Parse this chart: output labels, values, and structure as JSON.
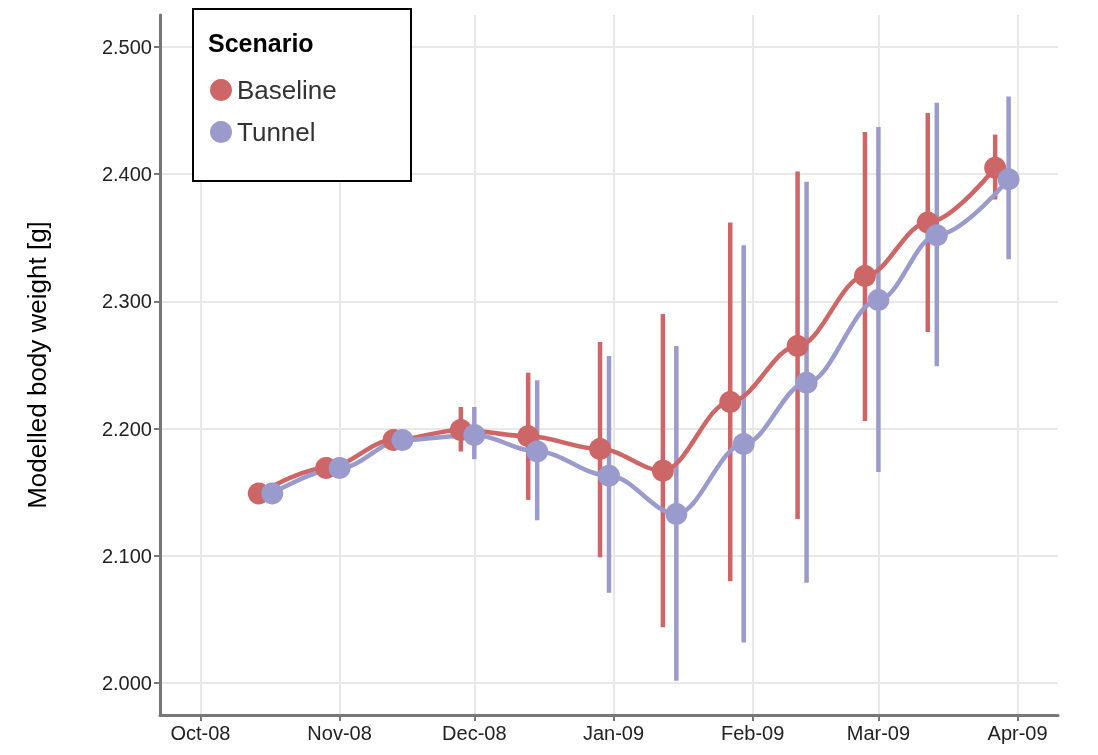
{
  "chart_data": {
    "type": "line",
    "ylabel": "Modelled body weight [g]",
    "legend_title": "Scenario",
    "legend": "top left",
    "grid": true,
    "marker": "circle",
    "line_style": "solid",
    "xlim": [
      "2008-09-22",
      "2009-04-10"
    ],
    "xticks": [
      {
        "value": "2008-10-01",
        "label": "Oct-08"
      },
      {
        "value": "2008-11-01",
        "label": "Nov-08"
      },
      {
        "value": "2008-12-01",
        "label": "Dec-08"
      },
      {
        "value": "2009-01-01",
        "label": "Jan-09"
      },
      {
        "value": "2009-02-01",
        "label": "Feb-09"
      },
      {
        "value": "2009-03-01",
        "label": "Mar-09"
      },
      {
        "value": "2009-04-01",
        "label": "Apr-09"
      }
    ],
    "ylim": [
      1.975,
      2.525
    ],
    "yticks": [
      {
        "value": 2.0,
        "label": "2.000"
      },
      {
        "value": 2.1,
        "label": "2.100"
      },
      {
        "value": 2.2,
        "label": "2.200"
      },
      {
        "value": 2.3,
        "label": "2.300"
      },
      {
        "value": 2.4,
        "label": "2.400"
      },
      {
        "value": 2.5,
        "label": "2.500"
      }
    ],
    "series": [
      {
        "name": "Baseline",
        "color": "#cd6666",
        "x": [
          "2008-10-14",
          "2008-10-29",
          "2008-11-13",
          "2008-11-28",
          "2008-12-13",
          "2008-12-29",
          "2009-01-12",
          "2009-01-27",
          "2009-02-11",
          "2009-02-26",
          "2009-03-12",
          "2009-03-27"
        ],
        "values": [
          2.149,
          2.169,
          2.191,
          2.199,
          2.194,
          2.184,
          2.167,
          2.221,
          2.265,
          2.32,
          2.362,
          2.405
        ],
        "errors": [
          null,
          null,
          null,
          [
            2.182,
            2.217
          ],
          [
            2.144,
            2.244
          ],
          [
            2.099,
            2.268
          ],
          [
            2.044,
            2.29
          ],
          [
            2.08,
            2.362
          ],
          [
            2.129,
            2.402
          ],
          [
            2.206,
            2.433
          ],
          [
            2.276,
            2.448
          ],
          [
            2.38,
            2.431
          ]
        ]
      },
      {
        "name": "Tunnel",
        "color": "#9a9acd",
        "x": [
          "2008-10-17",
          "2008-11-01",
          "2008-11-15",
          "2008-12-01",
          "2008-12-15",
          "2008-12-31",
          "2009-01-15",
          "2009-01-30",
          "2009-02-13",
          "2009-03-01",
          "2009-03-14",
          "2009-03-30"
        ],
        "values": [
          2.149,
          2.169,
          2.191,
          2.195,
          2.182,
          2.163,
          2.133,
          2.188,
          2.236,
          2.301,
          2.352,
          2.396
        ],
        "errors": [
          null,
          null,
          null,
          [
            2.176,
            2.217
          ],
          [
            2.128,
            2.238
          ],
          [
            2.071,
            2.257
          ],
          [
            2.002,
            2.265
          ],
          [
            2.032,
            2.344
          ],
          [
            2.079,
            2.394
          ],
          [
            2.166,
            2.437
          ],
          [
            2.249,
            2.456
          ],
          [
            2.333,
            2.461
          ]
        ]
      }
    ]
  }
}
